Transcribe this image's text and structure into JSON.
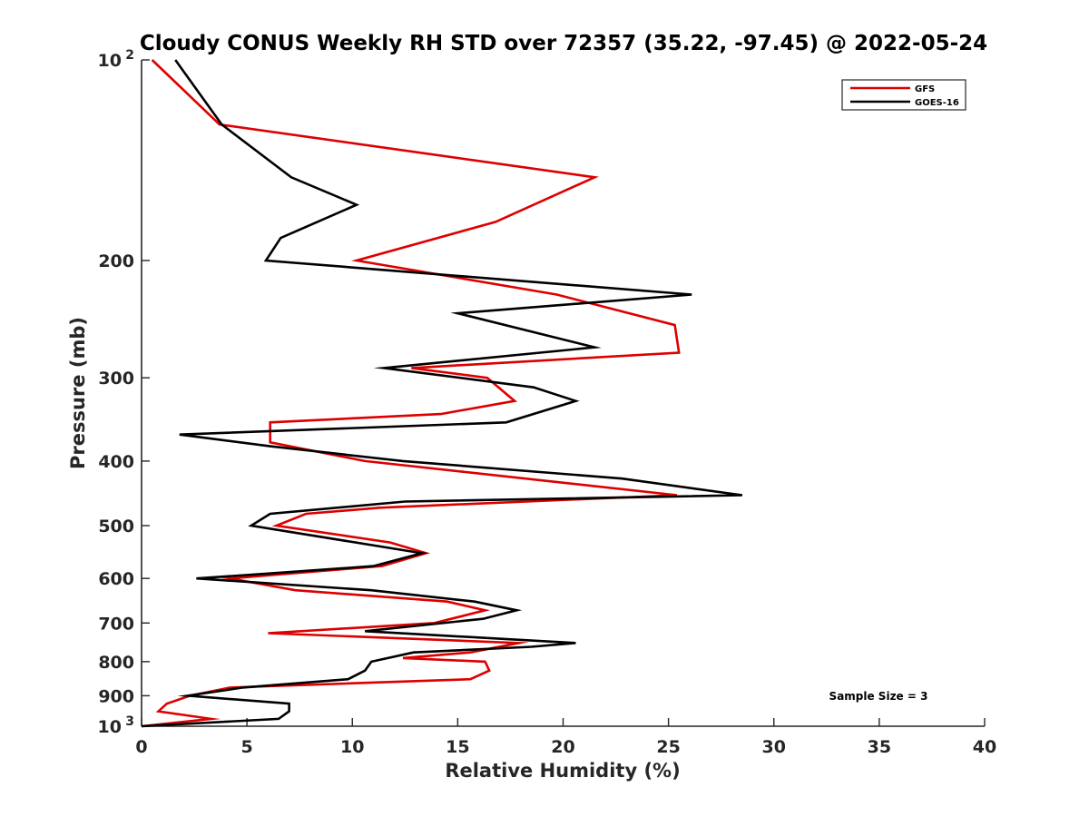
{
  "chart_data": {
    "type": "line",
    "title": "Cloudy CONUS Weekly RH STD over 72357 (35.22, -97.45) @ 2022-05-24",
    "xlabel": "Relative Humidity (%)",
    "ylabel": "Pressure (mb)",
    "xlim": [
      0,
      40
    ],
    "ylim": [
      100,
      1000
    ],
    "y_scale": "log",
    "y_reversed": true,
    "grid": false,
    "legend_position": "top-right",
    "x_ticks": [
      "0",
      "5",
      "10",
      "15",
      "20",
      "25",
      "30",
      "35",
      "40"
    ],
    "y_ticks": [
      {
        "value": 100,
        "base": "10",
        "exp": "2"
      },
      {
        "value": 200,
        "label": "200"
      },
      {
        "value": 300,
        "label": "300"
      },
      {
        "value": 400,
        "label": "400"
      },
      {
        "value": 500,
        "label": "500"
      },
      {
        "value": 600,
        "label": "600"
      },
      {
        "value": 700,
        "label": "700"
      },
      {
        "value": 800,
        "label": "800"
      },
      {
        "value": 900,
        "label": "900"
      },
      {
        "value": 1000,
        "base": "10",
        "exp": "3"
      }
    ],
    "annotation": "Sample Size = 3",
    "series": [
      {
        "name": "GFS",
        "color": "#dd0000",
        "points": [
          [
            0.5,
            100
          ],
          [
            3.7,
            125
          ],
          [
            21.5,
            150
          ],
          [
            16.8,
            175
          ],
          [
            10.2,
            200
          ],
          [
            19.7,
            225
          ],
          [
            25.3,
            250
          ],
          [
            25.5,
            275
          ],
          [
            12.8,
            290
          ],
          [
            16.4,
            300
          ],
          [
            17.7,
            325
          ],
          [
            14.2,
            340
          ],
          [
            6.1,
            350
          ],
          [
            6.1,
            375
          ],
          [
            10.6,
            400
          ],
          [
            25.4,
            450
          ],
          [
            11.3,
            470
          ],
          [
            7.8,
            480
          ],
          [
            6.4,
            500
          ],
          [
            11.8,
            530
          ],
          [
            13.5,
            550
          ],
          [
            11.4,
            575
          ],
          [
            4.2,
            600
          ],
          [
            7.3,
            625
          ],
          [
            14.5,
            650
          ],
          [
            16.3,
            670
          ],
          [
            13.9,
            700
          ],
          [
            6.0,
            725
          ],
          [
            17.9,
            750
          ],
          [
            15.6,
            775
          ],
          [
            12.4,
            790
          ],
          [
            16.3,
            800
          ],
          [
            16.5,
            825
          ],
          [
            15.6,
            850
          ],
          [
            4.2,
            875
          ],
          [
            2.3,
            900
          ],
          [
            1.2,
            925
          ],
          [
            0.8,
            950
          ],
          [
            3.3,
            975
          ],
          [
            0.0,
            1000
          ]
        ]
      },
      {
        "name": "GOES-16",
        "color": "#000000",
        "points": [
          [
            1.6,
            100
          ],
          [
            3.8,
            125
          ],
          [
            7.1,
            150
          ],
          [
            10.2,
            165
          ],
          [
            6.6,
            185
          ],
          [
            5.9,
            200
          ],
          [
            26.1,
            225
          ],
          [
            15.0,
            240
          ],
          [
            21.5,
            270
          ],
          [
            11.5,
            290
          ],
          [
            18.6,
            310
          ],
          [
            20.6,
            325
          ],
          [
            17.3,
            350
          ],
          [
            1.8,
            365
          ],
          [
            6.1,
            380
          ],
          [
            12.4,
            400
          ],
          [
            22.8,
            425
          ],
          [
            28.5,
            450
          ],
          [
            12.5,
            460
          ],
          [
            6.1,
            480
          ],
          [
            5.2,
            500
          ],
          [
            13.3,
            550
          ],
          [
            11.0,
            575
          ],
          [
            6.0,
            590
          ],
          [
            2.6,
            600
          ],
          [
            10.9,
            625
          ],
          [
            15.8,
            650
          ],
          [
            17.8,
            670
          ],
          [
            16.2,
            690
          ],
          [
            10.6,
            720
          ],
          [
            20.6,
            750
          ],
          [
            18.5,
            760
          ],
          [
            12.9,
            775
          ],
          [
            10.9,
            800
          ],
          [
            10.6,
            825
          ],
          [
            9.8,
            850
          ],
          [
            4.8,
            875
          ],
          [
            2.2,
            900
          ],
          [
            7.0,
            925
          ],
          [
            7.0,
            950
          ],
          [
            6.5,
            975
          ],
          [
            0.0,
            1000
          ]
        ]
      }
    ]
  }
}
